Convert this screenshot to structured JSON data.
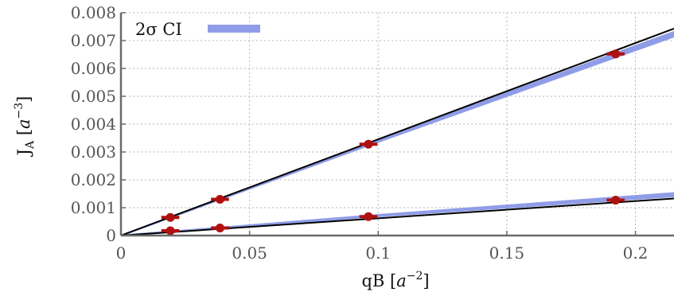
{
  "chart_data": {
    "type": "line",
    "xlabel": {
      "base": "qB [",
      "var": "a",
      "sup": "−2",
      "end": "]"
    },
    "ylabel": {
      "base": "J",
      "sub": "A",
      "mid": " [",
      "var": "a",
      "sup": "−3",
      "end": "]"
    },
    "xlim": [
      0,
      0.215
    ],
    "ylim": [
      0,
      0.008
    ],
    "xticks": [
      0,
      0.05,
      0.1,
      0.15,
      0.2
    ],
    "xtick_labels": [
      "0",
      "0.05",
      "0.1",
      "0.15",
      "0.2"
    ],
    "yticks": [
      0,
      0.001,
      0.002,
      0.003,
      0.004,
      0.005,
      0.006,
      0.007,
      0.008
    ],
    "ytick_labels": [
      "0",
      "0.001",
      "0.002",
      "0.003",
      "0.004",
      "0.005",
      "0.006",
      "0.007",
      "0.008"
    ],
    "grid": true,
    "legend": {
      "position": "top-left",
      "entries": [
        {
          "label": "2σ CI",
          "color": "#8f9de8"
        }
      ]
    },
    "colors": {
      "points": "#b01010",
      "fit_line": "#000000",
      "ci_band": "#8f9de8"
    },
    "series": [
      {
        "kind": "points",
        "x": [
          0.0192,
          0.0385,
          0.0962,
          0.1923
        ],
        "y": [
          0.00065,
          0.0013,
          0.00328,
          0.00652
        ],
        "xerr": [
          0.0035,
          0.0035,
          0.0035,
          0.0035
        ]
      },
      {
        "kind": "points",
        "x": [
          0.0192,
          0.0385,
          0.0962,
          0.1923
        ],
        "y": [
          0.00017,
          0.00027,
          0.00068,
          0.00127
        ],
        "xerr": [
          0.0035,
          0.0035,
          0.0035,
          0.0035
        ]
      },
      {
        "kind": "fit",
        "x": [
          0,
          0.215
        ],
        "y": [
          0,
          0.00743
        ]
      },
      {
        "kind": "fit",
        "x": [
          0,
          0.215
        ],
        "y": [
          0,
          0.00133
        ]
      },
      {
        "kind": "ci_band",
        "x": [
          0,
          0.0962,
          0.215
        ],
        "y_low": [
          0,
          0.00324,
          0.00715
        ],
        "y_high": [
          0,
          0.0033,
          0.00731
        ]
      },
      {
        "kind": "ci_band",
        "x": [
          0,
          0.0385,
          0.0962,
          0.215
        ],
        "y_low": [
          0,
          0.00027,
          0.00067,
          0.00141
        ],
        "y_high": [
          0,
          0.00028,
          0.00071,
          0.00152
        ]
      }
    ]
  }
}
